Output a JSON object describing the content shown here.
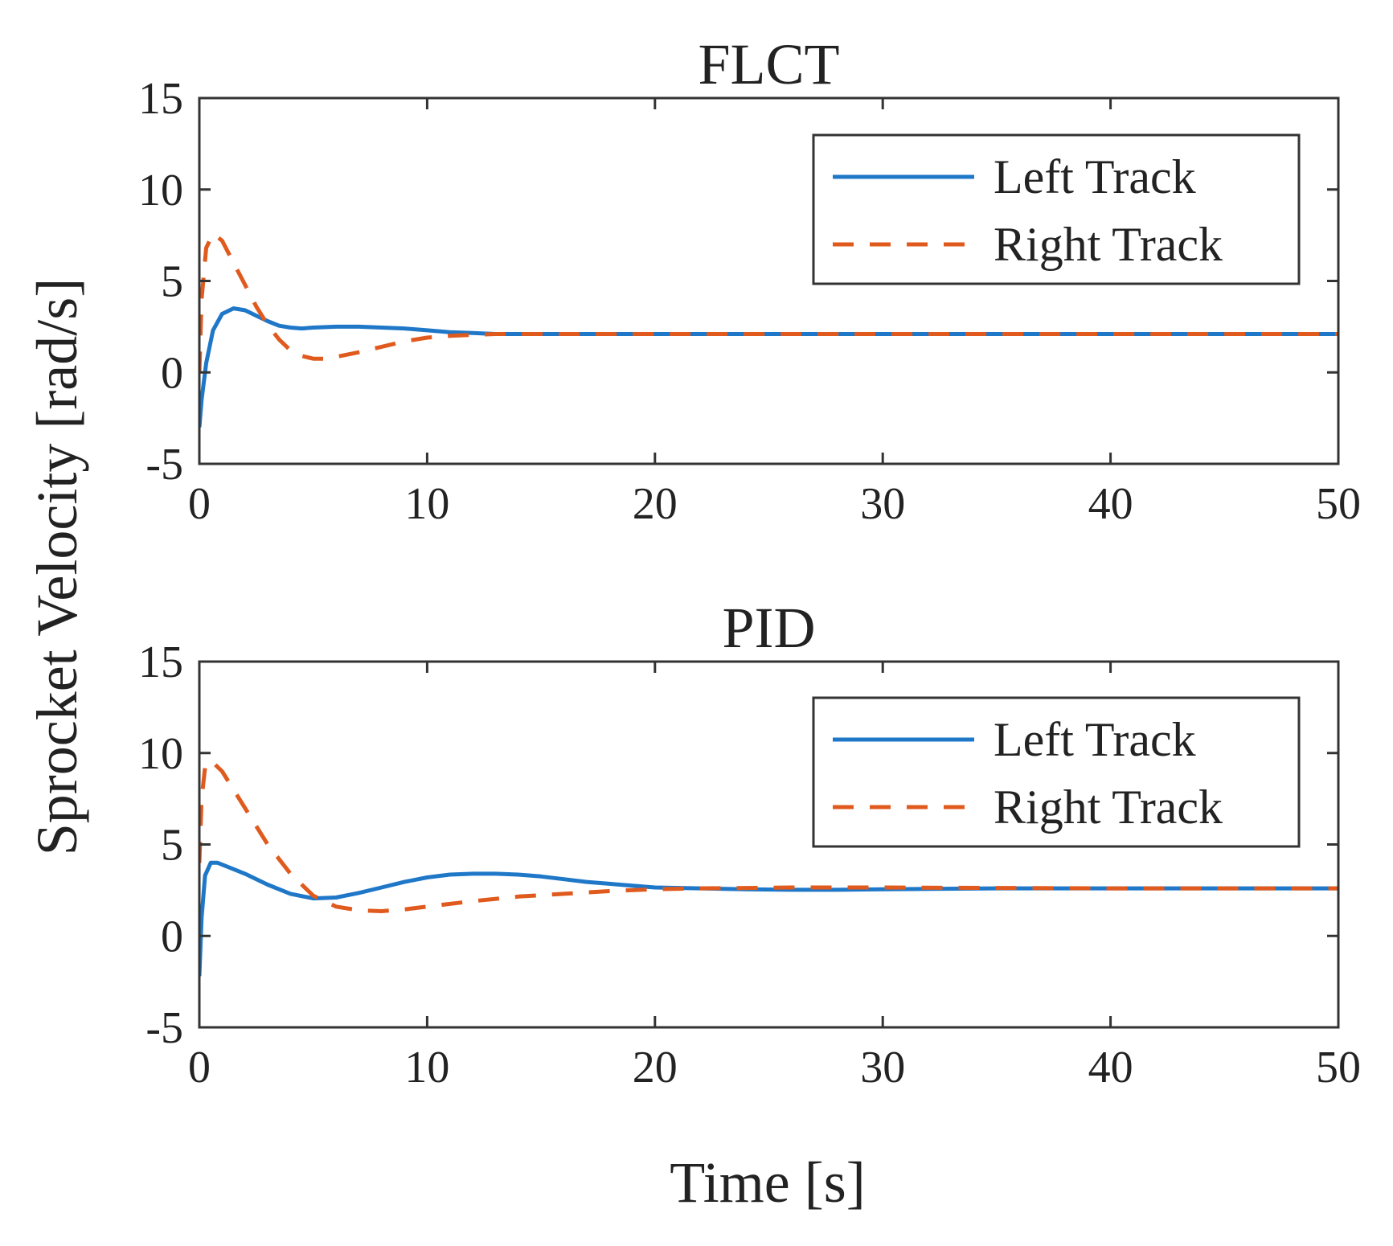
{
  "figure": {
    "ylabel": "Sprocket Velocity [rad/s]",
    "xlabel": "Time [s]"
  },
  "chart_data": [
    {
      "type": "line",
      "title": "FLCT",
      "xlabel": "Time [s]",
      "ylabel": "Sprocket Velocity [rad/s]",
      "xlim": [
        0,
        50
      ],
      "ylim": [
        -5,
        15
      ],
      "xticks": [
        0,
        10,
        20,
        30,
        40,
        50
      ],
      "yticks": [
        -5,
        0,
        5,
        10,
        15
      ],
      "grid": false,
      "legend_position": "top-right",
      "series": [
        {
          "name": "Left Track",
          "color": "#1f77c8",
          "style": "solid",
          "x": [
            0,
            0.1,
            0.3,
            0.6,
            1.0,
            1.5,
            2.0,
            2.5,
            3.0,
            3.5,
            4.0,
            4.5,
            5.0,
            6.0,
            7.0,
            8.0,
            9.0,
            10.0,
            11.0,
            12.0,
            13.0,
            14.0,
            15.0,
            20.0,
            30.0,
            40.0,
            50.0
          ],
          "y": [
            -3.0,
            -1.5,
            0.5,
            2.3,
            3.2,
            3.5,
            3.4,
            3.1,
            2.8,
            2.55,
            2.45,
            2.4,
            2.45,
            2.5,
            2.5,
            2.45,
            2.4,
            2.3,
            2.2,
            2.15,
            2.1,
            2.1,
            2.1,
            2.1,
            2.1,
            2.1,
            2.1
          ]
        },
        {
          "name": "Right Track",
          "color": "#e05a1e",
          "style": "dashed",
          "x": [
            0,
            0.1,
            0.3,
            0.6,
            1.0,
            1.5,
            2.0,
            2.5,
            3.0,
            3.5,
            4.0,
            4.5,
            5.0,
            5.5,
            6.0,
            7.0,
            8.0,
            9.0,
            10.0,
            11.0,
            12.0,
            13.0,
            14.0,
            15.0,
            20.0,
            30.0,
            40.0,
            50.0
          ],
          "y": [
            0.0,
            4.0,
            6.8,
            7.6,
            7.2,
            6.0,
            4.8,
            3.6,
            2.6,
            1.8,
            1.2,
            0.9,
            0.75,
            0.75,
            0.85,
            1.1,
            1.4,
            1.7,
            1.9,
            2.0,
            2.05,
            2.1,
            2.1,
            2.1,
            2.1,
            2.1,
            2.1,
            2.1
          ]
        }
      ]
    },
    {
      "type": "line",
      "title": "PID",
      "xlabel": "Time [s]",
      "ylabel": "Sprocket Velocity [rad/s]",
      "xlim": [
        0,
        50
      ],
      "ylim": [
        -5,
        15
      ],
      "xticks": [
        0,
        10,
        20,
        30,
        40,
        50
      ],
      "yticks": [
        -5,
        0,
        5,
        10,
        15
      ],
      "grid": false,
      "legend_position": "top-right",
      "series": [
        {
          "name": "Left Track",
          "color": "#1f77c8",
          "style": "solid",
          "x": [
            0,
            0.1,
            0.25,
            0.5,
            0.8,
            1.2,
            2.0,
            3.0,
            4.0,
            5.0,
            6.0,
            7.0,
            8.0,
            9.0,
            10.0,
            11.0,
            12.0,
            13.0,
            14.0,
            15.0,
            16.0,
            17.0,
            18.0,
            19.0,
            20.0,
            22.0,
            24.0,
            26.0,
            28.0,
            30.0,
            35.0,
            40.0,
            50.0
          ],
          "y": [
            -2.2,
            1.0,
            3.3,
            4.0,
            4.0,
            3.8,
            3.4,
            2.8,
            2.3,
            2.05,
            2.1,
            2.35,
            2.65,
            2.95,
            3.2,
            3.35,
            3.4,
            3.4,
            3.35,
            3.25,
            3.1,
            2.95,
            2.85,
            2.75,
            2.65,
            2.6,
            2.55,
            2.52,
            2.52,
            2.55,
            2.6,
            2.6,
            2.6
          ]
        },
        {
          "name": "Right Track",
          "color": "#e05a1e",
          "style": "dashed",
          "x": [
            0,
            0.1,
            0.25,
            0.5,
            1.0,
            2.0,
            3.0,
            4.0,
            5.0,
            6.0,
            7.0,
            8.0,
            9.0,
            10.0,
            12.0,
            14.0,
            16.0,
            18.0,
            20.0,
            22.0,
            24.0,
            26.0,
            28.0,
            30.0,
            35.0,
            40.0,
            50.0
          ],
          "y": [
            4.0,
            7.5,
            9.2,
            9.6,
            9.0,
            7.0,
            5.0,
            3.4,
            2.2,
            1.6,
            1.4,
            1.35,
            1.45,
            1.6,
            1.9,
            2.15,
            2.3,
            2.45,
            2.55,
            2.6,
            2.62,
            2.65,
            2.65,
            2.65,
            2.62,
            2.6,
            2.6
          ]
        }
      ]
    }
  ]
}
